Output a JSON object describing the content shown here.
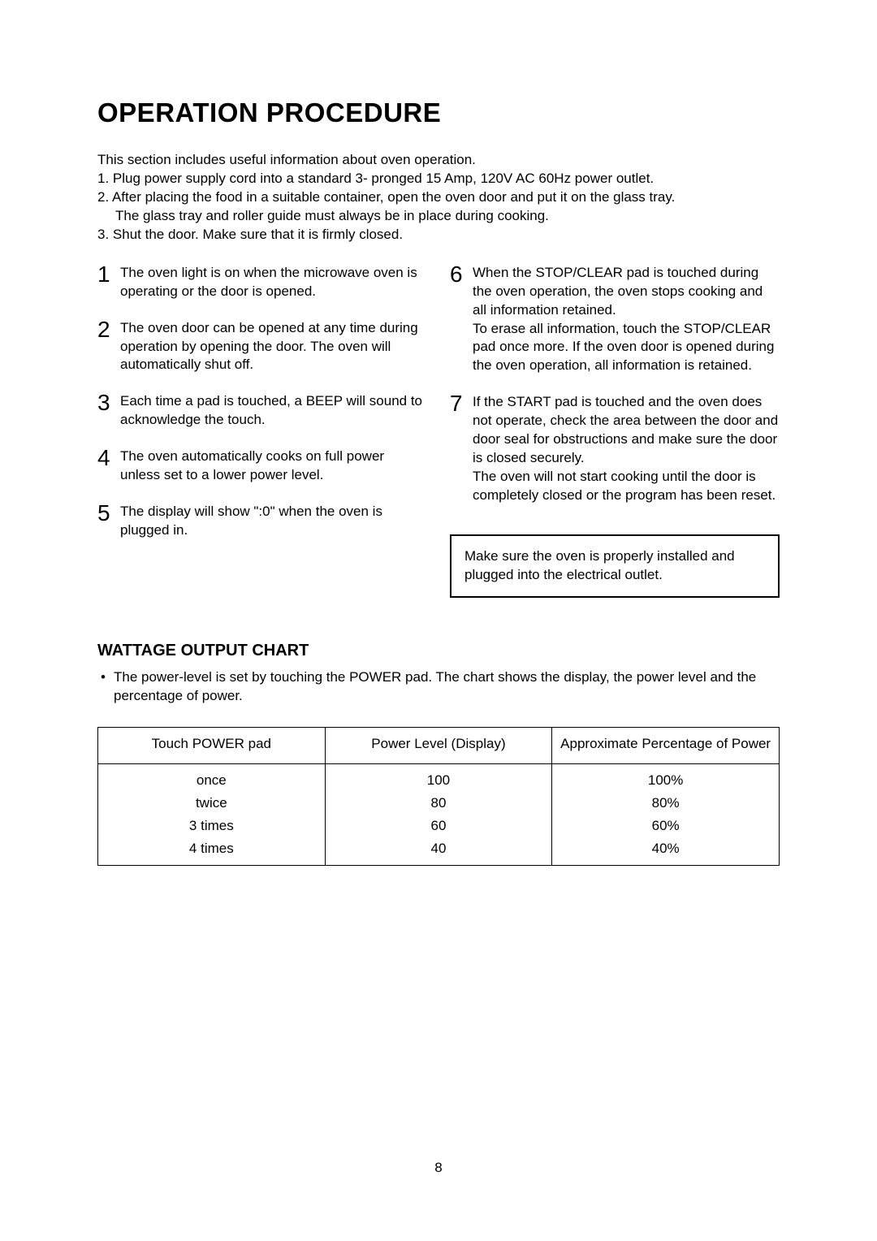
{
  "title": "OPERATION PROCEDURE",
  "intro": {
    "lead": "This section includes useful information about oven operation.",
    "l1": "1. Plug power supply cord into a standard 3- pronged 15 Amp, 120V AC 60Hz power outlet.",
    "l2": "2. After placing the food in a suitable container, open the oven door and put it on the glass tray.",
    "l2sub": "The glass tray and roller guide must always be in place during cooking.",
    "l3": "3. Shut the door. Make sure that it is firmly closed."
  },
  "left": {
    "i1": {
      "n": "1",
      "t": "The oven light is on when the microwave oven is operating or the door is opened."
    },
    "i2": {
      "n": "2",
      "t": "The oven door can be opened at any time during operation by opening the door. The oven will automatically shut off."
    },
    "i3": {
      "n": "3",
      "t": "Each time a pad is touched, a BEEP will sound to acknowledge the touch."
    },
    "i4": {
      "n": "4",
      "t": "The oven automatically cooks on full power unless set to a lower power level."
    },
    "i5": {
      "n": "5",
      "t": "The display will show \":0\" when the oven is plugged in."
    }
  },
  "right": {
    "i6": {
      "n": "6",
      "t": "When the STOP/CLEAR pad is touched during the oven operation, the oven stops cooking and all information retained.\nTo erase all information, touch the STOP/CLEAR pad once more. If the oven door is opened during the oven operation, all information is retained."
    },
    "i7": {
      "n": "7",
      "t": "If the START pad is touched and the oven does not operate, check the area between the door and door seal for obstructions and make sure the door is closed securely.\nThe oven will not start cooking until the door is completely closed or the program has been reset."
    }
  },
  "note": "Make sure the oven is properly installed and plugged into the electrical outlet.",
  "wattage": {
    "heading": "WATTAGE OUTPUT CHART",
    "bullet": "The power-level is set by touching the POWER pad. The chart shows the display, the power level and the percentage of power.",
    "columns": [
      "Touch POWER pad",
      "Power Level (Display)",
      "Approximate Percentage of Power"
    ],
    "rows": [
      [
        "once",
        "100",
        "100%"
      ],
      [
        "twice",
        "80",
        "80%"
      ],
      [
        "3 times",
        "60",
        "60%"
      ],
      [
        "4 times",
        "40",
        "40%"
      ]
    ],
    "col_widths": [
      "280px",
      "280px",
      "280px"
    ]
  },
  "page_number": "8"
}
